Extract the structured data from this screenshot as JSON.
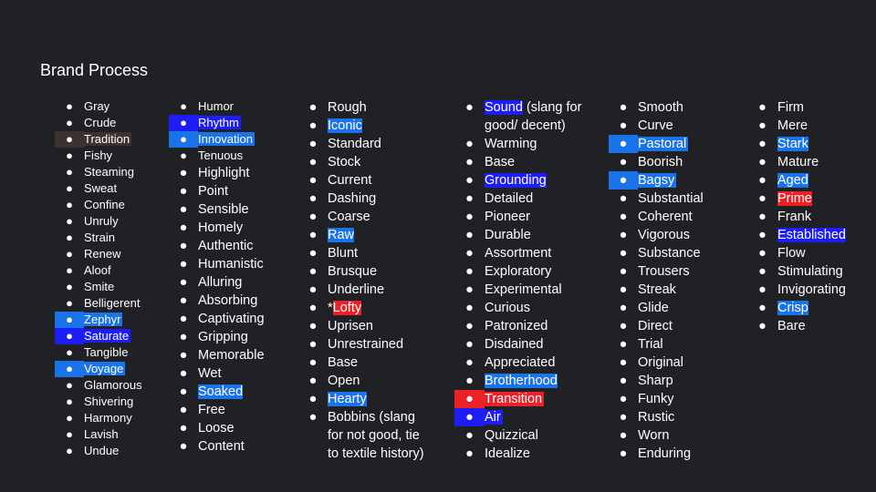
{
  "title": "Brand Process",
  "bullet": "●",
  "colors": {
    "background": "#202124",
    "text": "#ffffff",
    "highlight_blue": "#1a73e8",
    "highlight_royal": "#1d1df5",
    "highlight_red": "#ea2228",
    "highlight_brown": "#3d3230"
  },
  "columns": [
    {
      "items": [
        {
          "text": "Gray"
        },
        {
          "text": "Crude"
        },
        {
          "text": "Tradition",
          "highlight": "#3d3230",
          "full": true
        },
        {
          "text": "Fishy"
        },
        {
          "text": "Steaming"
        },
        {
          "text": "Sweat"
        },
        {
          "text": "Confine"
        },
        {
          "text": "Unruly"
        },
        {
          "text": "Strain"
        },
        {
          "text": "Renew"
        },
        {
          "text": "Aloof"
        },
        {
          "text": "Smite"
        },
        {
          "text": "Belligerent"
        },
        {
          "text": "Zephyr",
          "highlight": "#1a73e8",
          "full": true
        },
        {
          "text": "Saturate",
          "highlight": "#1d1df5",
          "full": true
        },
        {
          "text": "Tangible"
        },
        {
          "text": "Voyage",
          "highlight": "#1a73e8",
          "full": true
        },
        {
          "text": "Glamorous"
        },
        {
          "text": "Shivering"
        },
        {
          "text": "Harmony"
        },
        {
          "text": "Lavish"
        },
        {
          "text": "Undue"
        }
      ]
    },
    {
      "items": [
        {
          "text": "Humor"
        },
        {
          "text": "Rhythm",
          "highlight": "#1d1df5",
          "full": true
        },
        {
          "text": "Innovation",
          "highlight": "#1a73e8",
          "full": true
        },
        {
          "text": "Tenuous"
        },
        {
          "text": "Highlight"
        },
        {
          "text": "Point"
        },
        {
          "text": "Sensible"
        },
        {
          "text": "Homely"
        },
        {
          "text": "Authentic"
        },
        {
          "text": "Humanistic"
        },
        {
          "text": "Alluring"
        },
        {
          "text": "Absorbing"
        },
        {
          "text": "Captivating"
        },
        {
          "text": "Gripping"
        },
        {
          "text": "Memorable"
        },
        {
          "text": "Wet"
        },
        {
          "text": "Soaked",
          "highlight": "#1a73e8"
        },
        {
          "text": "Free"
        },
        {
          "text": "Loose"
        },
        {
          "text": "Content"
        }
      ]
    },
    {
      "items": [
        {
          "text": "Rough"
        },
        {
          "text": "Iconic",
          "highlight": "#1a73e8"
        },
        {
          "text": "Standard"
        },
        {
          "text": "Stock"
        },
        {
          "text": "Current"
        },
        {
          "text": "Dashing"
        },
        {
          "text": "Coarse"
        },
        {
          "text": "Raw",
          "highlight": "#1a73e8"
        },
        {
          "text": "Blunt"
        },
        {
          "text": "Brusque"
        },
        {
          "text": "Underline"
        },
        {
          "text": "Lofty",
          "prefix": "*",
          "highlight": "#ea2228"
        },
        {
          "text": "Uprisen"
        },
        {
          "text": "Unrestrained"
        },
        {
          "text": "Base"
        },
        {
          "text": "Open"
        },
        {
          "text": "Hearty",
          "highlight": "#1a73e8"
        },
        {
          "text": "Bobbins (slang for not good, tie to textile history)",
          "multi": true,
          "lines": [
            "Bobbins (slang",
            "for not good, tie",
            "to textile history)"
          ]
        }
      ]
    },
    {
      "items": [
        {
          "text": "Sound",
          "suffix": " (slang for",
          "line2": "good/ decent)",
          "highlight": "#1d1df5",
          "twoline": true
        },
        {
          "text": "Warming"
        },
        {
          "text": "Base"
        },
        {
          "text": "Grounding",
          "highlight": "#1d1df5"
        },
        {
          "text": "Detailed"
        },
        {
          "text": "Pioneer"
        },
        {
          "text": "Durable"
        },
        {
          "text": "Assortment"
        },
        {
          "text": "Exploratory"
        },
        {
          "text": "Experimental"
        },
        {
          "text": "Curious"
        },
        {
          "text": "Patronized"
        },
        {
          "text": "Disdained"
        },
        {
          "text": "Appreciated"
        },
        {
          "text": "Brotherhood",
          "highlight": "#1a73e8"
        },
        {
          "text": "Transition",
          "highlight": "#ea2228",
          "full": true
        },
        {
          "text": "Air",
          "highlight": "#1d1df5",
          "full": true
        },
        {
          "text": "Quizzical"
        },
        {
          "text": "Idealize"
        }
      ]
    },
    {
      "items": [
        {
          "text": "Smooth"
        },
        {
          "text": "Curve"
        },
        {
          "text": "Pastoral",
          "highlight": "#1a73e8",
          "full": true
        },
        {
          "text": "Boorish"
        },
        {
          "text": "Bagsy",
          "highlight": "#1a73e8",
          "full": true
        },
        {
          "text": "Substantial"
        },
        {
          "text": "Coherent"
        },
        {
          "text": "Vigorous"
        },
        {
          "text": "Substance"
        },
        {
          "text": "Trousers"
        },
        {
          "text": "Streak"
        },
        {
          "text": "Glide"
        },
        {
          "text": "Direct"
        },
        {
          "text": "Trial"
        },
        {
          "text": "Original"
        },
        {
          "text": "Sharp"
        },
        {
          "text": "Funky"
        },
        {
          "text": "Rustic"
        },
        {
          "text": "Worn"
        },
        {
          "text": "Enduring"
        }
      ]
    },
    {
      "items": [
        {
          "text": "Firm"
        },
        {
          "text": "Mere"
        },
        {
          "text": "Stark",
          "highlight": "#1a73e8"
        },
        {
          "text": "Mature"
        },
        {
          "text": "Aged",
          "highlight": "#1a73e8"
        },
        {
          "text": "Prime",
          "highlight": "#ea2228"
        },
        {
          "text": "Frank"
        },
        {
          "text": "Established",
          "highlight": "#1d1df5"
        },
        {
          "text": "Flow"
        },
        {
          "text": "Stimulating"
        },
        {
          "text": "Invigorating"
        },
        {
          "text": "Crisp",
          "highlight": "#1a73e8"
        },
        {
          "text": "Bare"
        }
      ]
    }
  ]
}
